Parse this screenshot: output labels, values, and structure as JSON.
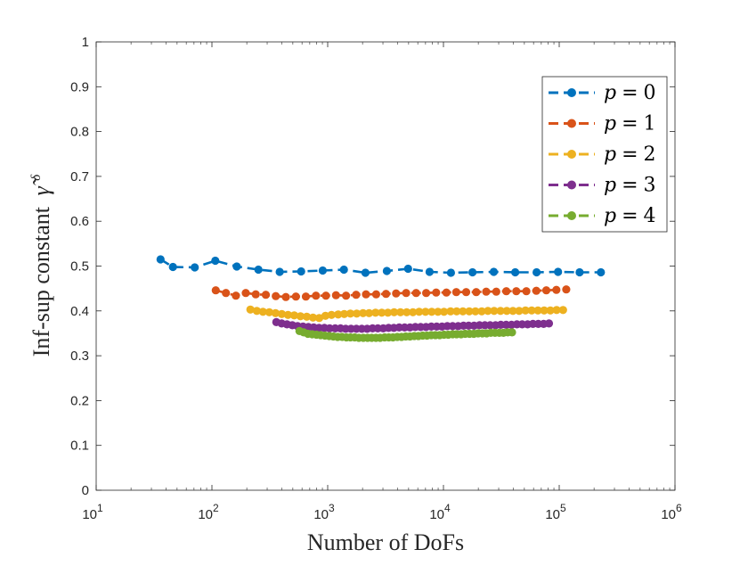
{
  "chart_data": {
    "type": "line",
    "xscale": "log",
    "title": "",
    "xlabel": "Number of DoFs",
    "ylabel_text": "Inf-sup constant",
    "ylabel_symbol": "γ̃",
    "ylabel_superscript": "δ",
    "xlim": [
      10,
      1000000
    ],
    "ylim": [
      0,
      1
    ],
    "x_tick_bases": [
      "10",
      "10",
      "10",
      "10",
      "10",
      "10"
    ],
    "x_tick_exponents": [
      "1",
      "2",
      "3",
      "4",
      "5",
      "6"
    ],
    "y_tick_labels": [
      "0",
      "0.1",
      "0.2",
      "0.3",
      "0.4",
      "0.5",
      "0.6",
      "0.7",
      "0.8",
      "0.9",
      "1"
    ],
    "grid": false,
    "legend_position": "top-right",
    "series": [
      {
        "name": "p = 0",
        "legend_var": "p",
        "legend_eq": "=",
        "legend_num": "0",
        "color": "#0072BD",
        "x": [
          36,
          46,
          71,
          107,
          164,
          252,
          385,
          590,
          905,
          1380,
          2120,
          3240,
          4950,
          7590,
          11600,
          17800,
          27200,
          41700,
          63800,
          97800,
          150000,
          229000
        ],
        "y": [
          0.515,
          0.498,
          0.497,
          0.512,
          0.499,
          0.492,
          0.487,
          0.488,
          0.49,
          0.492,
          0.485,
          0.489,
          0.494,
          0.487,
          0.485,
          0.486,
          0.487,
          0.486,
          0.486,
          0.487,
          0.486,
          0.486
        ]
      },
      {
        "name": "p = 1",
        "legend_var": "p",
        "legend_eq": "=",
        "legend_num": "1",
        "color": "#D95319",
        "x": [
          108,
          132,
          161,
          196,
          239,
          292,
          356,
          435,
          531,
          648,
          791,
          965,
          1180,
          1440,
          1760,
          2140,
          2620,
          3190,
          3900,
          4760,
          5810,
          7090,
          8650,
          10600,
          12900,
          15700,
          19200,
          23400,
          28600,
          34900,
          42600,
          52000,
          63400,
          77400,
          94500,
          115000
        ],
        "y": [
          0.446,
          0.44,
          0.434,
          0.44,
          0.437,
          0.436,
          0.433,
          0.431,
          0.432,
          0.432,
          0.434,
          0.434,
          0.435,
          0.434,
          0.436,
          0.437,
          0.437,
          0.438,
          0.439,
          0.44,
          0.44,
          0.44,
          0.441,
          0.441,
          0.442,
          0.442,
          0.442,
          0.443,
          0.443,
          0.444,
          0.444,
          0.444,
          0.445,
          0.446,
          0.447,
          0.448
        ]
      },
      {
        "name": "p = 2",
        "legend_var": "p",
        "legend_eq": "=",
        "legend_num": "2",
        "color": "#EDB120",
        "x": [
          215,
          244,
          276,
          313,
          354,
          401,
          454,
          514,
          582,
          659,
          746,
          845,
          957,
          1080,
          1230,
          1390,
          1570,
          1780,
          2020,
          2280,
          2590,
          2930,
          3310,
          3750,
          4250,
          4810,
          5450,
          6170,
          6990,
          7910,
          8960,
          10100,
          11500,
          13000,
          14700,
          16700,
          18900,
          21400,
          24200,
          27400,
          31100,
          35200,
          39800,
          45100,
          51100,
          57800,
          65500,
          74100,
          83900,
          95000,
          108000
        ],
        "y": [
          0.403,
          0.4,
          0.398,
          0.397,
          0.395,
          0.393,
          0.391,
          0.39,
          0.388,
          0.387,
          0.385,
          0.384,
          0.389,
          0.391,
          0.392,
          0.393,
          0.394,
          0.394,
          0.395,
          0.395,
          0.396,
          0.396,
          0.396,
          0.397,
          0.397,
          0.397,
          0.397,
          0.398,
          0.398,
          0.398,
          0.398,
          0.398,
          0.399,
          0.399,
          0.399,
          0.399,
          0.399,
          0.399,
          0.4,
          0.4,
          0.4,
          0.4,
          0.4,
          0.4,
          0.401,
          0.401,
          0.401,
          0.401,
          0.401,
          0.402,
          0.402
        ]
      },
      {
        "name": "p = 3",
        "legend_var": "p",
        "legend_eq": "=",
        "legend_num": "3",
        "color": "#7E2F8E",
        "x": [
          360,
          400,
          445,
          495,
          550,
          612,
          681,
          757,
          842,
          937,
          1040,
          1160,
          1290,
          1430,
          1590,
          1770,
          1970,
          2190,
          2440,
          2710,
          3020,
          3360,
          3730,
          4150,
          4620,
          5140,
          5710,
          6350,
          7070,
          7860,
          8740,
          9720,
          10800,
          12000,
          13400,
          14900,
          16500,
          18400,
          20500,
          22800,
          25300,
          28200,
          31300,
          34800,
          38700,
          43100,
          47900,
          53300,
          59300,
          65900,
          73300,
          81600
        ],
        "y": [
          0.375,
          0.372,
          0.37,
          0.368,
          0.366,
          0.365,
          0.364,
          0.363,
          0.362,
          0.362,
          0.361,
          0.361,
          0.361,
          0.36,
          0.36,
          0.36,
          0.36,
          0.36,
          0.361,
          0.361,
          0.361,
          0.362,
          0.362,
          0.363,
          0.363,
          0.363,
          0.364,
          0.364,
          0.364,
          0.365,
          0.365,
          0.365,
          0.366,
          0.366,
          0.366,
          0.367,
          0.367,
          0.367,
          0.368,
          0.368,
          0.368,
          0.368,
          0.369,
          0.369,
          0.369,
          0.37,
          0.37,
          0.37,
          0.371,
          0.371,
          0.371,
          0.372
        ]
      },
      {
        "name": "p = 4",
        "legend_var": "p",
        "legend_eq": "=",
        "legend_num": "4",
        "color": "#77AC30",
        "x": [
          570,
          620,
          675,
          735,
          800,
          870,
          947,
          1030,
          1120,
          1220,
          1330,
          1450,
          1570,
          1710,
          1860,
          2030,
          2210,
          2400,
          2610,
          2840,
          3100,
          3370,
          3660,
          3990,
          4340,
          4720,
          5140,
          5590,
          6080,
          6620,
          7210,
          7840,
          8530,
          9290,
          10100,
          11000,
          12000,
          13000,
          14200,
          15400,
          16800,
          18300,
          19900,
          21700,
          23600,
          25600,
          27900,
          30400,
          33000,
          35900,
          39100
        ],
        "y": [
          0.355,
          0.352,
          0.349,
          0.348,
          0.347,
          0.346,
          0.345,
          0.344,
          0.343,
          0.342,
          0.342,
          0.341,
          0.341,
          0.341,
          0.34,
          0.34,
          0.34,
          0.34,
          0.34,
          0.34,
          0.341,
          0.341,
          0.341,
          0.342,
          0.342,
          0.343,
          0.343,
          0.344,
          0.344,
          0.345,
          0.345,
          0.346,
          0.346,
          0.346,
          0.347,
          0.347,
          0.348,
          0.348,
          0.348,
          0.349,
          0.349,
          0.349,
          0.35,
          0.35,
          0.35,
          0.351,
          0.351,
          0.351,
          0.351,
          0.352,
          0.352
        ]
      }
    ]
  }
}
